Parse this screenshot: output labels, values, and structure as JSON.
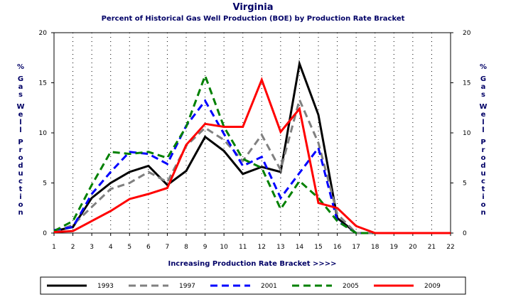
{
  "chart_data": {
    "type": "line",
    "title": "Virginia",
    "subtitle": "Percent of Historical Gas Well Production (BOE) by Production Rate Bracket",
    "xlabel": "Increasing Production Rate Bracket >>>>",
    "ylabel": "% Gas Well Production",
    "x": [
      1,
      2,
      3,
      4,
      5,
      6,
      7,
      8,
      9,
      10,
      11,
      12,
      13,
      14,
      15,
      16,
      17,
      18,
      19,
      20,
      21,
      22
    ],
    "xticks": [
      "1",
      "2",
      "3",
      "4",
      "5",
      "6",
      "7",
      "8",
      "9",
      "10",
      "11",
      "12",
      "13",
      "14",
      "15",
      "16",
      "17",
      "18",
      "19",
      "20",
      "21",
      "22"
    ],
    "yticks": [
      "0",
      "5",
      "10",
      "15",
      "20"
    ],
    "ylim": [
      0,
      20
    ],
    "xlim": [
      1,
      22
    ],
    "grid": true,
    "legend_position": "bottom",
    "series": [
      {
        "name": "1993",
        "color": "#000000",
        "dash": "solid",
        "values": [
          0.2,
          0.6,
          3.5,
          5.0,
          6.1,
          6.7,
          4.8,
          6.2,
          9.6,
          8.2,
          5.9,
          6.6,
          6.1,
          16.9,
          11.8,
          1.5,
          0,
          0,
          0,
          0,
          0,
          0
        ]
      },
      {
        "name": "1997",
        "color": "#808080",
        "dash": "dashed",
        "values": [
          0.1,
          0.8,
          2.6,
          4.4,
          5.0,
          6.1,
          5.1,
          8.7,
          10.5,
          9.3,
          7.2,
          9.8,
          6.3,
          13.3,
          9.0,
          1.9,
          0,
          0,
          0,
          0,
          0,
          0
        ]
      },
      {
        "name": "2001",
        "color": "#0000ff",
        "dash": "dashed",
        "values": [
          0.3,
          0.6,
          3.9,
          6.1,
          8.1,
          7.9,
          6.9,
          10.7,
          13.2,
          9.9,
          6.7,
          7.6,
          3.5,
          6.0,
          8.5,
          1.2,
          0,
          0,
          0,
          0,
          0,
          0
        ]
      },
      {
        "name": "2005",
        "color": "#008000",
        "dash": "dashed",
        "values": [
          0.2,
          1.2,
          4.8,
          8.1,
          7.9,
          8.1,
          7.5,
          10.6,
          15.7,
          10.6,
          7.4,
          6.5,
          2.4,
          5.2,
          3.5,
          1.2,
          0,
          0,
          0,
          0,
          0,
          0
        ]
      },
      {
        "name": "2009",
        "color": "#ff0000",
        "dash": "solid",
        "values": [
          0.1,
          0.2,
          1.2,
          2.2,
          3.4,
          3.9,
          4.5,
          8.8,
          10.9,
          10.6,
          10.6,
          15.3,
          10.1,
          12.4,
          3.0,
          2.5,
          0.7,
          0,
          0,
          0,
          0,
          0
        ]
      }
    ]
  }
}
